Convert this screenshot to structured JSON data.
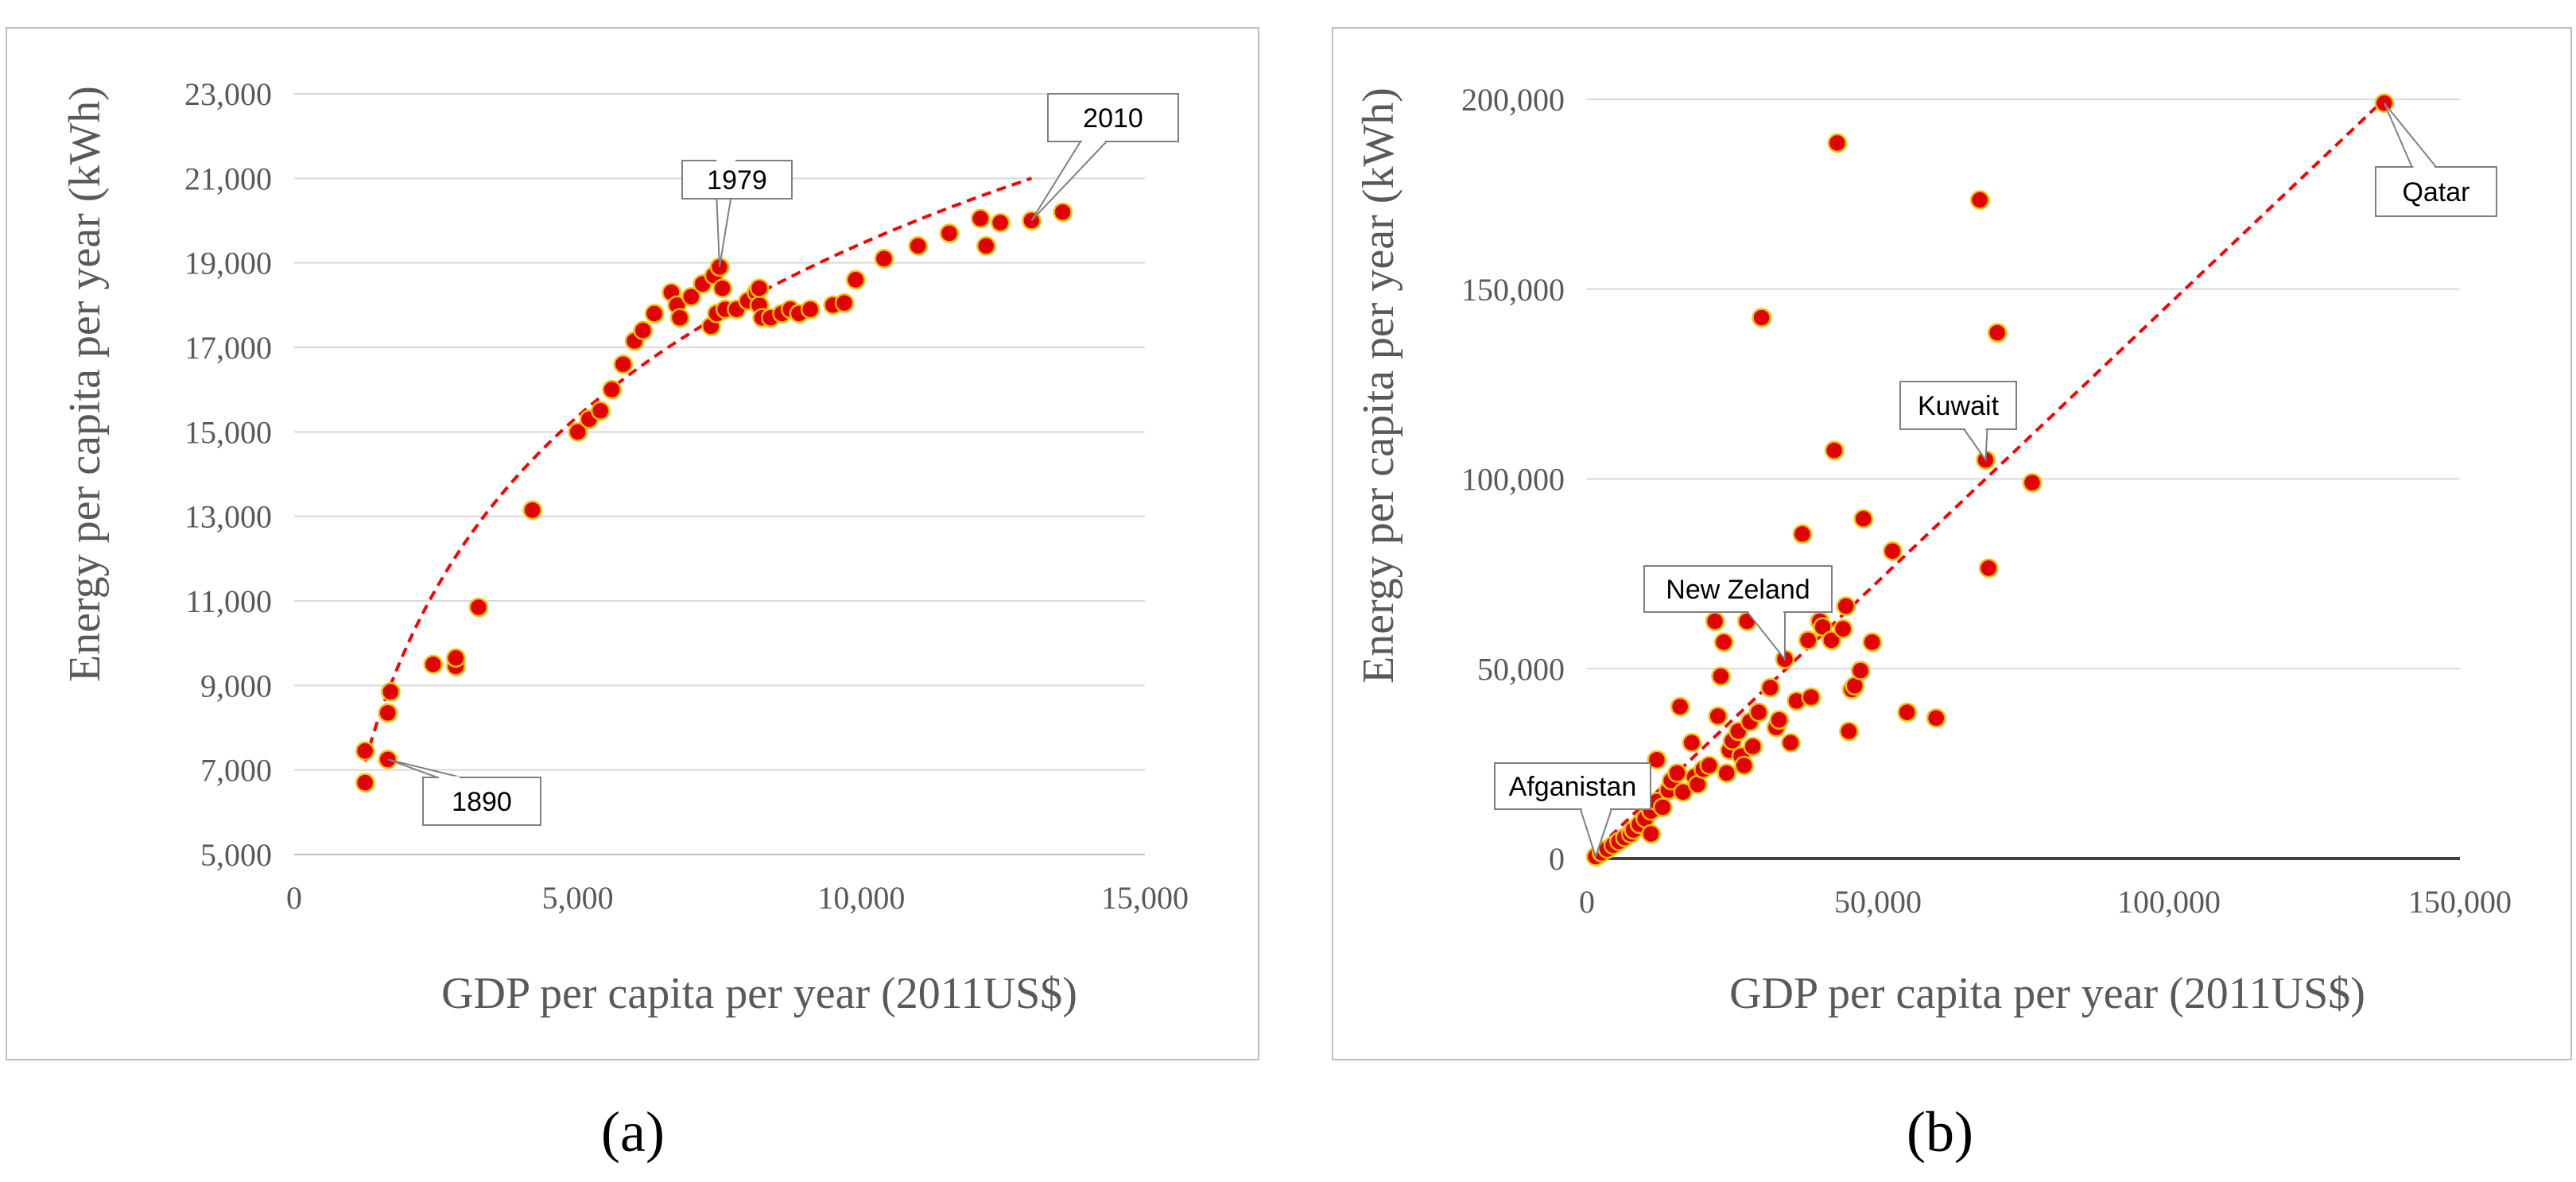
{
  "style": {
    "marker_fill": "#e00000",
    "marker_edge": "#ffc000",
    "trend_color": "#ff0000",
    "grid_color": "#d9d9d9",
    "frame_color": "#bfbfbf"
  },
  "chart_data": [
    {
      "type": "scatter",
      "panel_label": "(a)",
      "xlabel": "GDP per capita per year (2011US$)",
      "ylabel": "Energy per capita per year (kWh)",
      "xlim": [
        0,
        15000
      ],
      "ylim": [
        5000,
        23000
      ],
      "x_ticks": [
        0,
        5000,
        10000,
        15000
      ],
      "x_tick_labels": [
        "0",
        "5,000",
        "10,000",
        "15,000"
      ],
      "y_ticks": [
        5000,
        7000,
        9000,
        11000,
        13000,
        15000,
        17000,
        19000,
        21000,
        23000
      ],
      "y_tick_labels": [
        "5,000",
        "7,000",
        "9,000",
        "11,000",
        "13,000",
        "15,000",
        "17,000",
        "19,000",
        "21,000",
        "23,000"
      ],
      "grid": "horizontal",
      "trendline": {
        "type": "logarithmic",
        "from": [
          1250,
          7200
        ],
        "to": [
          13000,
          21000
        ]
      },
      "points": [
        [
          1250,
          6700
        ],
        [
          1250,
          7450
        ],
        [
          1650,
          7250
        ],
        [
          1650,
          8350
        ],
        [
          1700,
          8850
        ],
        [
          2450,
          9500
        ],
        [
          2850,
          9450
        ],
        [
          2850,
          9650
        ],
        [
          3250,
          10850
        ],
        [
          4200,
          13150
        ],
        [
          5000,
          15000
        ],
        [
          5200,
          15300
        ],
        [
          5400,
          15500
        ],
        [
          5600,
          16000
        ],
        [
          5800,
          16600
        ],
        [
          6000,
          17150
        ],
        [
          6150,
          17400
        ],
        [
          6350,
          17800
        ],
        [
          6650,
          18300
        ],
        [
          6750,
          18000
        ],
        [
          6800,
          17700
        ],
        [
          7000,
          18200
        ],
        [
          7200,
          18500
        ],
        [
          7400,
          18700
        ],
        [
          7350,
          17500
        ],
        [
          7450,
          17800
        ],
        [
          7500,
          18900
        ],
        [
          7550,
          18400
        ],
        [
          7600,
          17900
        ],
        [
          7800,
          17900
        ],
        [
          8000,
          18100
        ],
        [
          8150,
          18300
        ],
        [
          8200,
          18000
        ],
        [
          8250,
          17700
        ],
        [
          8200,
          18400
        ],
        [
          8400,
          17700
        ],
        [
          8600,
          17800
        ],
        [
          8750,
          17900
        ],
        [
          8900,
          17800
        ],
        [
          9100,
          17900
        ],
        [
          9500,
          18000
        ],
        [
          9700,
          18050
        ],
        [
          9900,
          18600
        ],
        [
          10400,
          19100
        ],
        [
          11000,
          19400
        ],
        [
          11550,
          19700
        ],
        [
          12100,
          20050
        ],
        [
          12200,
          19400
        ],
        [
          12450,
          19950
        ],
        [
          13000,
          20000
        ],
        [
          13550,
          20200
        ]
      ],
      "annotations": [
        {
          "text": "1890",
          "x": 1650,
          "y": 7250
        },
        {
          "text": "1979",
          "x": 7500,
          "y": 18900
        },
        {
          "text": "2010",
          "x": 13000,
          "y": 20000
        }
      ]
    },
    {
      "type": "scatter",
      "panel_label": "(b)",
      "xlabel": "GDP per capita per year (2011US$)",
      "ylabel": "Energy per capita per year (kWh)",
      "xlim": [
        0,
        150000
      ],
      "ylim": [
        0,
        200000
      ],
      "x_ticks": [
        0,
        50000,
        100000,
        150000
      ],
      "x_tick_labels": [
        "0",
        "50,000",
        "100,000",
        "150,000"
      ],
      "y_ticks": [
        0,
        50000,
        100000,
        150000,
        200000
      ],
      "y_tick_labels": [
        "0",
        "50,000",
        "100,000",
        "150,000",
        "200,000"
      ],
      "grid": "horizontal",
      "trendline": {
        "type": "linear",
        "from": [
          0,
          0
        ],
        "to": [
          137000,
          200000
        ]
      },
      "points": [
        [
          1500,
          500
        ],
        [
          2500,
          1500
        ],
        [
          3500,
          2500
        ],
        [
          4500,
          3500
        ],
        [
          5500,
          4500
        ],
        [
          6500,
          5500
        ],
        [
          7500,
          6500
        ],
        [
          8000,
          7500
        ],
        [
          9000,
          9000
        ],
        [
          10000,
          10500
        ],
        [
          11000,
          6500
        ],
        [
          11000,
          12500
        ],
        [
          12000,
          15000
        ],
        [
          12000,
          26000
        ],
        [
          13000,
          13500
        ],
        [
          14000,
          18000
        ],
        [
          14500,
          20500
        ],
        [
          15500,
          22500
        ],
        [
          16000,
          40000
        ],
        [
          16500,
          17500
        ],
        [
          18000,
          30500
        ],
        [
          18500,
          21500
        ],
        [
          19000,
          19500
        ],
        [
          20000,
          23500
        ],
        [
          21000,
          24500
        ],
        [
          22000,
          62500
        ],
        [
          22500,
          37500
        ],
        [
          23000,
          48000
        ],
        [
          23500,
          57000
        ],
        [
          24000,
          22500
        ],
        [
          24500,
          28500
        ],
        [
          25000,
          31000
        ],
        [
          26000,
          33500
        ],
        [
          26500,
          27000
        ],
        [
          27000,
          24500
        ],
        [
          27500,
          62500
        ],
        [
          28000,
          36000
        ],
        [
          28500,
          29500
        ],
        [
          29500,
          38500
        ],
        [
          30000,
          142500
        ],
        [
          31500,
          45000
        ],
        [
          32500,
          34500
        ],
        [
          33000,
          36500
        ],
        [
          34000,
          52500
        ],
        [
          35000,
          30500
        ],
        [
          36000,
          41500
        ],
        [
          37000,
          85500
        ],
        [
          38000,
          57500
        ],
        [
          38500,
          42500
        ],
        [
          40000,
          62500
        ],
        [
          40500,
          61000
        ],
        [
          42000,
          57500
        ],
        [
          42500,
          107500
        ],
        [
          43000,
          188500
        ],
        [
          44000,
          60500
        ],
        [
          44500,
          66500
        ],
        [
          45000,
          33500
        ],
        [
          45500,
          44500
        ],
        [
          46000,
          45500
        ],
        [
          47000,
          49500
        ],
        [
          47500,
          89500
        ],
        [
          49000,
          57000
        ],
        [
          52500,
          81000
        ],
        [
          55000,
          38500
        ],
        [
          60000,
          37000
        ],
        [
          67500,
          173500
        ],
        [
          68500,
          105000
        ],
        [
          69000,
          76500
        ],
        [
          70500,
          138500
        ],
        [
          76500,
          99000
        ],
        [
          137000,
          199000
        ]
      ],
      "annotations": [
        {
          "text": "Afganistan",
          "x": 1500,
          "y": 500
        },
        {
          "text": "New Zeland",
          "x": 34000,
          "y": 52500
        },
        {
          "text": "Kuwait",
          "x": 68500,
          "y": 105000
        },
        {
          "text": "Qatar",
          "x": 137000,
          "y": 199000
        }
      ]
    }
  ]
}
